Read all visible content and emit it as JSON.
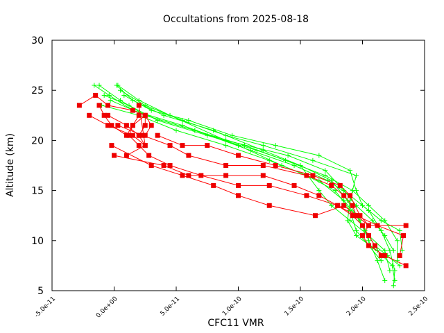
{
  "chart_data": {
    "type": "line",
    "title": "Occultations from 2025-08-18",
    "xlabel": "CFC11 VMR",
    "ylabel": "Altitude (km)",
    "xlim": [
      -5e-11,
      2.5e-10
    ],
    "ylim": [
      5,
      30
    ],
    "xticks": [
      -5e-11,
      0,
      5e-11,
      1e-10,
      1.5e-10,
      2e-10,
      2.5e-10
    ],
    "xtick_labels": [
      "-5.0e-11",
      "0.0e+00",
      "5.0e-11",
      "1.0e-10",
      "1.5e-10",
      "2.0e-10",
      "2.5e-10"
    ],
    "yticks": [
      5,
      10,
      15,
      20,
      25,
      30
    ],
    "ytick_labels": [
      "5",
      "10",
      "15",
      "20",
      "25",
      "30"
    ],
    "grid": false,
    "legend": "none",
    "colors": {
      "profiles": "#00ff00",
      "reference": "#ff0000",
      "reference_marker": "#ee0000",
      "axis": "#000000"
    },
    "series": [
      {
        "style": "plus",
        "color": "#00ff00",
        "points": [
          [
            -1.6e-11,
            25.5
          ],
          [
            -4e-12,
            24.5
          ],
          [
            1.5e-11,
            23
          ],
          [
            5.5e-11,
            21.5
          ],
          [
            1e-10,
            19.5
          ],
          [
            1.35e-10,
            17.5
          ],
          [
            1.65e-10,
            16
          ],
          [
            1.85e-10,
            14
          ],
          [
            1.98e-10,
            12
          ],
          [
            2.05e-10,
            10
          ],
          [
            2.12e-10,
            8
          ],
          [
            2.18e-10,
            6
          ]
        ]
      },
      {
        "style": "plus",
        "color": "#00ff00",
        "points": [
          [
            -1.2e-11,
            25.5
          ],
          [
            5e-12,
            24
          ],
          [
            2.5e-11,
            22.5
          ],
          [
            6.5e-11,
            21
          ],
          [
            1.1e-10,
            19
          ],
          [
            1.45e-10,
            17.5
          ],
          [
            1.72e-10,
            16
          ],
          [
            1.9e-10,
            14.5
          ],
          [
            2.05e-10,
            13
          ],
          [
            2.15e-10,
            11
          ],
          [
            2.22e-10,
            9
          ],
          [
            2.26e-10,
            7
          ],
          [
            2.25e-10,
            5.5
          ]
        ]
      },
      {
        "style": "plus",
        "color": "#00ff00",
        "points": [
          [
            -8e-12,
            24.5
          ],
          [
            1.2e-11,
            23.5
          ],
          [
            3.5e-11,
            22
          ],
          [
            7.5e-11,
            20.5
          ],
          [
            1.15e-10,
            19
          ],
          [
            1.5e-10,
            17.5
          ],
          [
            1.75e-10,
            16
          ],
          [
            1.88e-10,
            14
          ],
          [
            1.95e-10,
            12.5
          ],
          [
            2.02e-10,
            11
          ],
          [
            2.1e-10,
            9.5
          ],
          [
            2.2e-10,
            8.5
          ],
          [
            2.3e-10,
            7.5
          ]
        ]
      },
      {
        "style": "plus",
        "color": "#00ff00",
        "points": [
          [
            2e-12,
            25.5
          ],
          [
            1.5e-11,
            24
          ],
          [
            4e-11,
            22.5
          ],
          [
            8e-11,
            21
          ],
          [
            1.2e-10,
            19
          ],
          [
            1.5e-10,
            17.5
          ],
          [
            1.65e-10,
            15
          ],
          [
            1.75e-10,
            13.5
          ],
          [
            1.9e-10,
            12
          ],
          [
            2.05e-10,
            10.5
          ],
          [
            2.18e-10,
            9
          ],
          [
            2.22e-10,
            7
          ]
        ]
      },
      {
        "style": "plus",
        "color": "#00ff00",
        "points": [
          [
            8e-12,
            24.5
          ],
          [
            3e-11,
            23
          ],
          [
            6e-11,
            22
          ],
          [
            9.5e-11,
            20.5
          ],
          [
            1.3e-10,
            19.5
          ],
          [
            1.65e-10,
            18.5
          ],
          [
            1.9e-10,
            17
          ],
          [
            1.95e-10,
            15
          ],
          [
            2e-10,
            13.5
          ],
          [
            2.15e-10,
            12
          ],
          [
            2.3e-10,
            11
          ],
          [
            2.32e-10,
            9
          ]
        ]
      },
      {
        "style": "plus",
        "color": "#00ff00",
        "points": [
          [
            -1e-11,
            23.5
          ],
          [
            2e-11,
            22.5
          ],
          [
            5e-11,
            21
          ],
          [
            9e-11,
            19.5
          ],
          [
            1.25e-10,
            18
          ],
          [
            1.55e-10,
            16.5
          ],
          [
            1.78e-10,
            15
          ],
          [
            1.9e-10,
            13
          ],
          [
            1.95e-10,
            11
          ],
          [
            2.05e-10,
            9.5
          ],
          [
            2.15e-10,
            8
          ]
        ]
      },
      {
        "style": "plus",
        "color": "#00ff00",
        "points": [
          [
            5e-12,
            25
          ],
          [
            2.5e-11,
            23.5
          ],
          [
            5.5e-11,
            22
          ],
          [
            9e-11,
            20.5
          ],
          [
            1.2e-10,
            19.5
          ],
          [
            1.6e-10,
            18
          ],
          [
            1.95e-10,
            16.5
          ],
          [
            1.9e-10,
            14
          ],
          [
            1.88e-10,
            12
          ],
          [
            1.95e-10,
            10.5
          ],
          [
            2.12e-10,
            9
          ],
          [
            2.24e-10,
            7.5
          ],
          [
            2.26e-10,
            6
          ]
        ]
      },
      {
        "style": "plus",
        "color": "#00ff00",
        "points": [
          [
            3e-12,
            25.5
          ],
          [
            2e-11,
            24
          ],
          [
            4.5e-11,
            22.5
          ],
          [
            9e-11,
            20
          ],
          [
            1.4e-10,
            18.5
          ],
          [
            1.7e-10,
            17
          ],
          [
            1.85e-10,
            15
          ],
          [
            1.95e-10,
            13.5
          ],
          [
            2.08e-10,
            12
          ],
          [
            2.18e-10,
            10.5
          ],
          [
            2.25e-10,
            9
          ]
        ]
      },
      {
        "style": "plus",
        "color": "#00ff00",
        "points": [
          [
            -3e-12,
            24
          ],
          [
            2.5e-11,
            22.5
          ],
          [
            6.5e-11,
            21
          ],
          [
            1.05e-10,
            19.5
          ],
          [
            1.38e-10,
            18
          ],
          [
            1.7e-10,
            16.5
          ],
          [
            1.92e-10,
            15
          ],
          [
            2.05e-10,
            13.5
          ],
          [
            2.18e-10,
            12
          ],
          [
            2.28e-10,
            10
          ],
          [
            2.28e-10,
            8
          ]
        ]
      },
      {
        "style": "square",
        "color": "#ff0000",
        "points": [
          [
            -5e-12,
            22.5
          ],
          [
            1e-11,
            21.5
          ],
          [
            2e-11,
            20.5
          ],
          [
            2.5e-11,
            19.5
          ],
          [
            2e-11,
            23.5
          ]
        ]
      },
      {
        "style": "square",
        "color": "#ff0000",
        "points": [
          [
            -2e-11,
            22.5
          ],
          [
            -5e-12,
            21.5
          ],
          [
            1.5e-11,
            20.5
          ],
          [
            2.5e-11,
            19.5
          ],
          [
            1e-11,
            18.5
          ]
        ]
      },
      {
        "style": "square",
        "color": "#ff0000",
        "points": [
          [
            -2.8e-11,
            23.5
          ],
          [
            -1.5e-11,
            24.5
          ],
          [
            -5e-12,
            23.5
          ],
          [
            1.5e-11,
            23
          ],
          [
            2.5e-11,
            22.5
          ],
          [
            3e-11,
            21.5
          ],
          [
            2.5e-11,
            20.5
          ]
        ]
      },
      {
        "style": "square",
        "color": "#ff0000",
        "points": [
          [
            -1.2e-11,
            23.5
          ],
          [
            -8e-12,
            22.5
          ],
          [
            -2e-12,
            21.5
          ],
          [
            1e-11,
            20.5
          ],
          [
            1.5e-11,
            21.5
          ],
          [
            2.5e-11,
            22.5
          ],
          [
            2.5e-11,
            21.5
          ],
          [
            2e-11,
            20.5
          ]
        ]
      },
      {
        "style": "square",
        "color": "#ff0000",
        "points": [
          [
            2e-11,
            22.5
          ],
          [
            1.5e-11,
            21.5
          ],
          [
            1.2e-11,
            20.5
          ],
          [
            2e-11,
            19.5
          ],
          [
            2.8e-11,
            18.5
          ],
          [
            4.5e-11,
            17.5
          ],
          [
            7e-11,
            16.5
          ],
          [
            1e-10,
            15.5
          ],
          [
            1.25e-10,
            15.5
          ],
          [
            1.55e-10,
            14.5
          ],
          [
            1.8e-10,
            13.5
          ],
          [
            1.92e-10,
            12.5
          ],
          [
            2e-10,
            11.5
          ],
          [
            2.05e-10,
            10.5
          ],
          [
            2.1e-10,
            9.5
          ],
          [
            2.15e-10,
            8.5
          ]
        ]
      },
      {
        "style": "square",
        "color": "#ff0000",
        "points": [
          [
            -2e-12,
            19.5
          ],
          [
            3e-11,
            17.5
          ],
          [
            5.5e-11,
            16.5
          ],
          [
            8e-11,
            15.5
          ],
          [
            1e-10,
            14.5
          ],
          [
            1.25e-10,
            13.5
          ],
          [
            1.62e-10,
            12.5
          ],
          [
            1.85e-10,
            13.5
          ],
          [
            1.95e-10,
            12.5
          ],
          [
            2.05e-10,
            11.5
          ],
          [
            2e-10,
            10.5
          ],
          [
            2.05e-10,
            9.5
          ],
          [
            2.18e-10,
            8.5
          ],
          [
            2.35e-10,
            7.5
          ]
        ]
      },
      {
        "style": "square",
        "color": "#ff0000",
        "points": [
          [
            0.0,
            18.5
          ],
          [
            4e-11,
            17.5
          ],
          [
            6e-11,
            16.5
          ],
          [
            9e-11,
            16.5
          ],
          [
            1.2e-10,
            16.5
          ],
          [
            1.45e-10,
            15.5
          ],
          [
            1.65e-10,
            14.5
          ],
          [
            1.8e-10,
            13.5
          ],
          [
            1.95e-10,
            12.5
          ],
          [
            2.12e-10,
            11.5
          ],
          [
            2.33e-10,
            10.5
          ],
          [
            2.3e-10,
            8.5
          ]
        ]
      },
      {
        "style": "square",
        "color": "#ff0000",
        "points": [
          [
            3e-12,
            21.5
          ],
          [
            2.3e-11,
            20.5
          ],
          [
            4.5e-11,
            19.5
          ],
          [
            6e-11,
            18.5
          ],
          [
            9e-11,
            17.5
          ],
          [
            1.2e-10,
            17.5
          ],
          [
            1.55e-10,
            16.5
          ],
          [
            1.75e-10,
            15.5
          ],
          [
            1.85e-10,
            14.5
          ],
          [
            1.92e-10,
            13.5
          ],
          [
            1.95e-10,
            12.5
          ]
        ]
      },
      {
        "style": "square",
        "color": "#ff0000",
        "points": [
          [
            3.5e-11,
            20.5
          ],
          [
            5.5e-11,
            19.5
          ],
          [
            7.5e-11,
            19.5
          ],
          [
            1e-10,
            18.5
          ],
          [
            1.3e-10,
            17.5
          ],
          [
            1.6e-10,
            16.5
          ],
          [
            1.82e-10,
            15.5
          ],
          [
            1.9e-10,
            14.5
          ],
          [
            1.98e-10,
            12.5
          ],
          [
            2.05e-10,
            11.5
          ],
          [
            2.35e-10,
            11.5
          ]
        ]
      }
    ]
  }
}
